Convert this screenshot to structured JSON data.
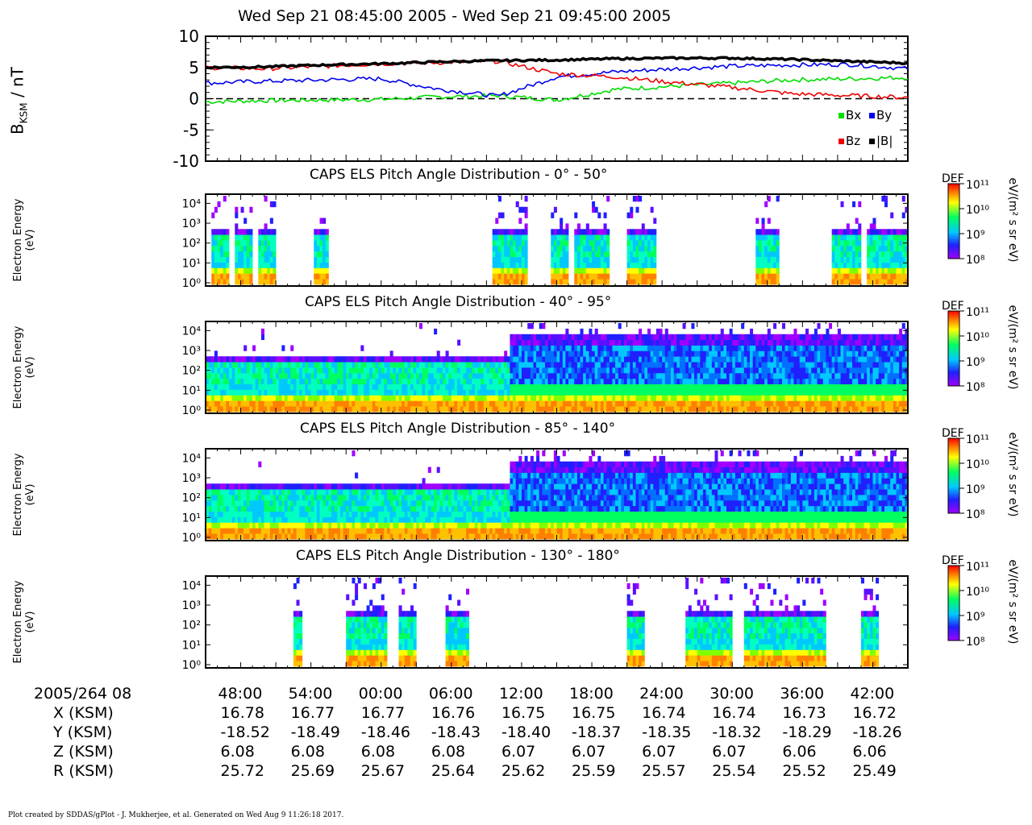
{
  "title": "Wed Sep 21 08:45:00 2005 - Wed Sep 21 09:45:00 2005",
  "footer": "Plot created by SDDAS/gPlot - J. Mukherjee, et al.  Generated on Wed Aug 9 11:26:18 2017.",
  "colors": {
    "bx": "#00dd00",
    "by": "#0000ee",
    "bz": "#ee0000",
    "bmag": "#000000"
  },
  "chart_data": [
    {
      "type": "line",
      "ylabel": "BKSM / nT",
      "ylim": [
        -10,
        10
      ],
      "yticks": [
        "10",
        "5",
        "0",
        "-5",
        "-10"
      ],
      "legend": {
        "bx": "Bx",
        "by": "By",
        "bz": "Bz",
        "bmag": "|B|"
      },
      "x_minutes": [
        0,
        5,
        10,
        15,
        20,
        25,
        30,
        35,
        40,
        45,
        50,
        55,
        60
      ],
      "series": [
        {
          "name": "Bx",
          "key": "bx",
          "values": [
            -0.5,
            -0.3,
            -0.2,
            -0.1,
            0.3,
            0.5,
            -0.2,
            1.5,
            2.0,
            2.5,
            3.0,
            3.2,
            3.4
          ]
        },
        {
          "name": "By",
          "key": "by",
          "values": [
            2.5,
            2.8,
            3.0,
            3.2,
            1.5,
            0.4,
            3.5,
            4.3,
            4.8,
            5.2,
            5.4,
            5.5,
            4.8
          ]
        },
        {
          "name": "Bz",
          "key": "bz",
          "values": [
            5.0,
            4.8,
            5.2,
            5.6,
            5.8,
            6.0,
            4.0,
            3.5,
            2.6,
            1.8,
            0.8,
            0.5,
            0.2
          ]
        },
        {
          "name": "|B|",
          "key": "bmag",
          "values": [
            5.0,
            5.1,
            5.4,
            5.6,
            5.9,
            6.1,
            6.2,
            6.4,
            6.5,
            6.5,
            6.3,
            6.0,
            5.7
          ]
        }
      ]
    },
    {
      "type": "heatmap",
      "title": "CAPS ELS Pitch Angle Distribution - 0° - 50°",
      "ylabel": "Electron Energy",
      "yunit": "(eV)",
      "colorbar_label": "DEF",
      "colorbar_unit": "eV/(m² s sr eV)",
      "colorbar_range": [
        100000000.0,
        100000000000.0
      ],
      "active_minutes": [
        [
          0.5,
          2.0
        ],
        [
          2.5,
          4.0
        ],
        [
          4.5,
          6.0
        ],
        [
          9.3,
          10.5
        ],
        [
          24.5,
          27.5
        ],
        [
          29.5,
          31.0
        ],
        [
          31.5,
          34.5
        ],
        [
          36.0,
          38.5
        ],
        [
          47.0,
          49.0
        ],
        [
          53.5,
          56.0
        ],
        [
          56.5,
          60.0
        ]
      ]
    },
    {
      "type": "heatmap",
      "title": "CAPS ELS Pitch Angle Distribution - 40° - 95°",
      "ylabel": "Electron Energy",
      "yunit": "(eV)",
      "colorbar_label": "DEF",
      "colorbar_unit": "eV/(m² s sr eV)",
      "colorbar_range": [
        100000000.0,
        100000000000.0
      ],
      "active_minutes": [
        [
          0,
          60
        ]
      ]
    },
    {
      "type": "heatmap",
      "title": "CAPS ELS Pitch Angle Distribution - 85° - 140°",
      "ylabel": "Electron Energy",
      "yunit": "(eV)",
      "colorbar_label": "DEF",
      "colorbar_unit": "eV/(m² s sr eV)",
      "colorbar_range": [
        100000000.0,
        100000000000.0
      ],
      "active_minutes": [
        [
          0,
          60
        ]
      ]
    },
    {
      "type": "heatmap",
      "title": "CAPS ELS Pitch Angle Distribution - 130° - 180°",
      "ylabel": "Electron Energy",
      "yunit": "(eV)",
      "colorbar_label": "DEF",
      "colorbar_unit": "eV/(m² s sr eV)",
      "colorbar_range": [
        100000000.0,
        100000000000.0
      ],
      "active_minutes": [
        [
          7.5,
          8.3
        ],
        [
          12.0,
          15.5
        ],
        [
          16.5,
          18.0
        ],
        [
          20.5,
          22.5
        ],
        [
          36.0,
          37.5
        ],
        [
          41.0,
          45.0
        ],
        [
          46.0,
          53.0
        ],
        [
          56.0,
          57.5
        ]
      ]
    }
  ],
  "energy_ticks": [
    "10⁴",
    "10³",
    "10²",
    "10¹",
    "10⁰"
  ],
  "colorbar_ticks": [
    "10¹¹",
    "10¹⁰",
    "10⁹",
    "10⁸"
  ],
  "ephemeris": {
    "date_label": "2005/264 08",
    "times": [
      "48:00",
      "54:00",
      "00:00",
      "06:00",
      "12:00",
      "18:00",
      "24:00",
      "30:00",
      "36:00",
      "42:00"
    ],
    "rows": [
      {
        "label": "X (KSM)",
        "values": [
          "16.78",
          "16.77",
          "16.77",
          "16.76",
          "16.75",
          "16.75",
          "16.74",
          "16.74",
          "16.73",
          "16.72"
        ]
      },
      {
        "label": "Y (KSM)",
        "values": [
          "-18.52",
          "-18.49",
          "-18.46",
          "-18.43",
          "-18.40",
          "-18.37",
          "-18.35",
          "-18.32",
          "-18.29",
          "-18.26"
        ]
      },
      {
        "label": "Z (KSM)",
        "values": [
          "6.08",
          "6.08",
          "6.08",
          "6.08",
          "6.07",
          "6.07",
          "6.07",
          "6.07",
          "6.06",
          "6.06"
        ]
      },
      {
        "label": "R (KSM)",
        "values": [
          "25.72",
          "25.69",
          "25.67",
          "25.64",
          "25.62",
          "25.59",
          "25.57",
          "25.54",
          "25.52",
          "25.49"
        ]
      }
    ]
  }
}
